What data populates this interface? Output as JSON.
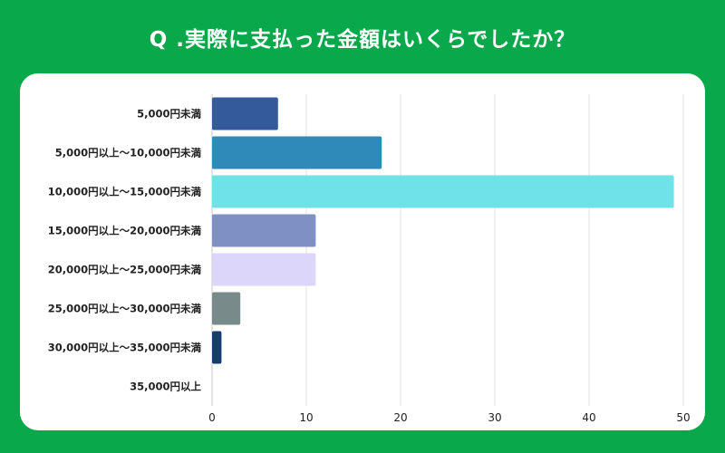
{
  "title": "Q .実際に支払った金額はいくらでしたか？",
  "chart_data": {
    "type": "bar",
    "orientation": "horizontal",
    "title": "Q .実際に支払った金額はいくらでしたか？",
    "categories": [
      "5,000円未満",
      "5,000円以上〜10,000円未満",
      "10,000円以上〜15,000円未満",
      "15,000円以上〜20,000円未満",
      "20,000円以上〜25,000円未満",
      "25,000円以上〜30,000円未満",
      "30,000円以上〜35,000円未満",
      "35,000円以上"
    ],
    "values": [
      7,
      18,
      49,
      11,
      11,
      3,
      1,
      0
    ],
    "colors": [
      "#345a9c",
      "#2e8ab8",
      "#6fe2e8",
      "#7f90c4",
      "#dcd6fb",
      "#788a8a",
      "#153d6e",
      "#cccccc"
    ],
    "xlim": [
      0,
      50
    ],
    "xticks": [
      0,
      10,
      20,
      30,
      40,
      50
    ],
    "grid": true,
    "legend": "none"
  }
}
